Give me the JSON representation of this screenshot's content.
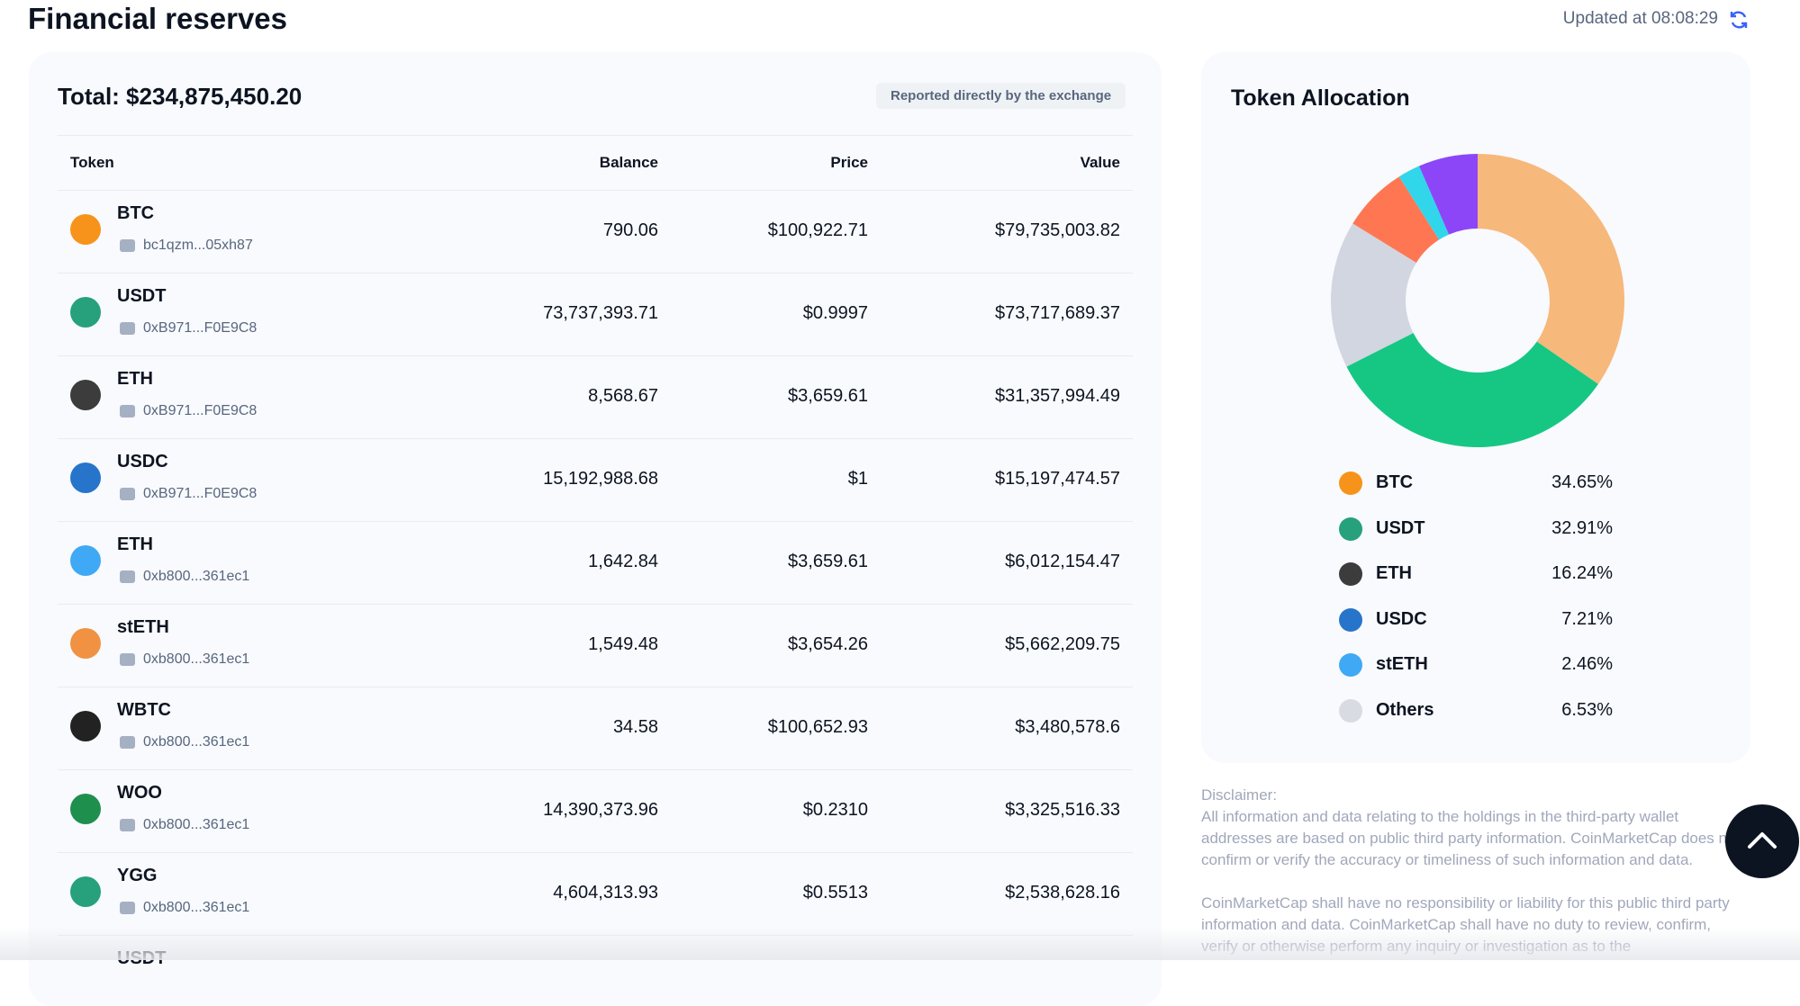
{
  "header": {
    "title": "Financial reserves",
    "updated": "Updated at 08:08:29"
  },
  "reserves": {
    "total": "Total: $234,875,450.20",
    "source": "Reported directly by the exchange",
    "columns": [
      "Token",
      "Balance",
      "Price",
      "Value"
    ],
    "rows": [
      {
        "token": "BTC",
        "address": "bc1qzm...05xh87",
        "balance": "790.06",
        "price": "$100,922.71",
        "value": "$79,735,003.82"
      },
      {
        "token": "USDT",
        "address": "0xB971...F0E9C8",
        "balance": "73,737,393.71",
        "price": "$0.9997",
        "value": "$73,717,689.37"
      },
      {
        "token": "ETH",
        "address": "0xB971...F0E9C8",
        "balance": "8,568.67",
        "price": "$3,659.61",
        "value": "$31,357,994.49"
      },
      {
        "token": "USDC",
        "address": "0xB971...F0E9C8",
        "balance": "15,192,988.68",
        "price": "$1",
        "value": "$15,197,474.57"
      },
      {
        "token": "ETH",
        "address": "0xb800...361ec1",
        "balance": "1,642.84",
        "price": "$3,659.61",
        "value": "$6,012,154.47"
      },
      {
        "token": "stETH",
        "address": "0xb800...361ec1",
        "balance": "1,549.48",
        "price": "$3,654.26",
        "value": "$5,662,209.75"
      },
      {
        "token": "WBTC",
        "address": "0xb800...361ec1",
        "balance": "34.58",
        "price": "$100,652.93",
        "value": "$3,480,578.6"
      },
      {
        "token": "WOO",
        "address": "0xb800...361ec1",
        "balance": "14,390,373.96",
        "price": "$0.2310",
        "value": "$3,325,516.33"
      },
      {
        "token": "YGG",
        "address": "0xb800...361ec1",
        "balance": "4,604,313.93",
        "price": "$0.5513",
        "value": "$2,538,628.16"
      },
      {
        "token": "USDT"
      }
    ]
  },
  "allocation": {
    "type": "pie",
    "title": "Token Allocation",
    "categories": [
      "BTC",
      "USDT",
      "ETH",
      "USDC",
      "stETH",
      "Others"
    ],
    "values": [
      34.65,
      32.91,
      16.24,
      7.21,
      2.46,
      6.53
    ],
    "value_labels": [
      "34.65%",
      "32.91%",
      "16.24%",
      "7.21%",
      "2.46%",
      "6.53%"
    ],
    "colors": [
      "#f6b87b",
      "#16c784",
      "#d1d6e0",
      "#ff7752",
      "#31d6ea",
      "#8c46f7"
    ]
  },
  "disclaimer": {
    "heading": "Disclaimer:",
    "paragraphs": [
      "All information and data relating to the holdings in the third-party wallet addresses are based on public third party information. CoinMarketCap does not confirm or verify the accuracy or timeliness of such information and data.",
      "CoinMarketCap shall have no responsibility or liability for this public third party information and data. CoinMarketCap shall have no duty to review, confirm, verify or otherwise perform any inquiry or investigation as to the"
    ]
  }
}
